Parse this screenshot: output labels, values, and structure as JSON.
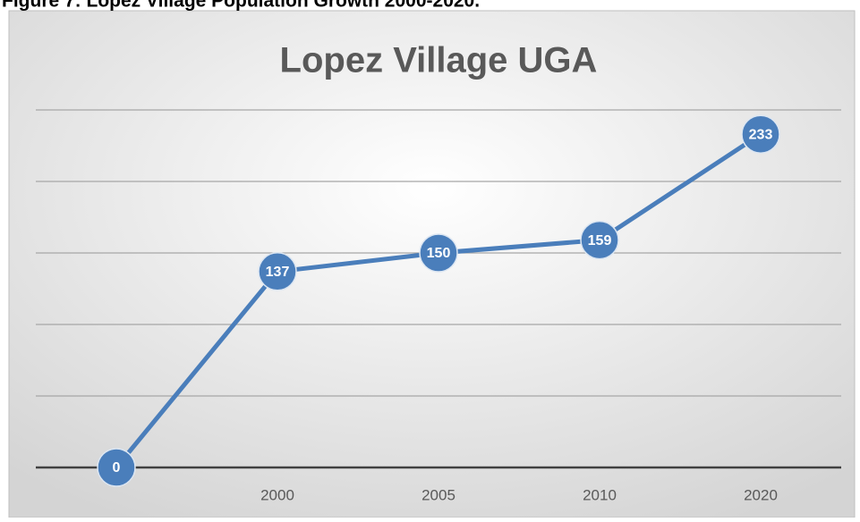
{
  "chart_data": {
    "type": "line",
    "figure_caption": "Figure 7: Lopez Village Population Growth 2000-2020.",
    "title": "Lopez Village UGA",
    "categories": [
      null,
      "2000",
      "2005",
      "2010",
      "2020"
    ],
    "values": [
      0,
      137,
      150,
      159,
      233
    ],
    "color": "#4a7ebb",
    "ylim": [
      0,
      250
    ],
    "yticks": [
      0,
      50,
      100,
      150,
      200,
      250
    ],
    "grid": true
  }
}
